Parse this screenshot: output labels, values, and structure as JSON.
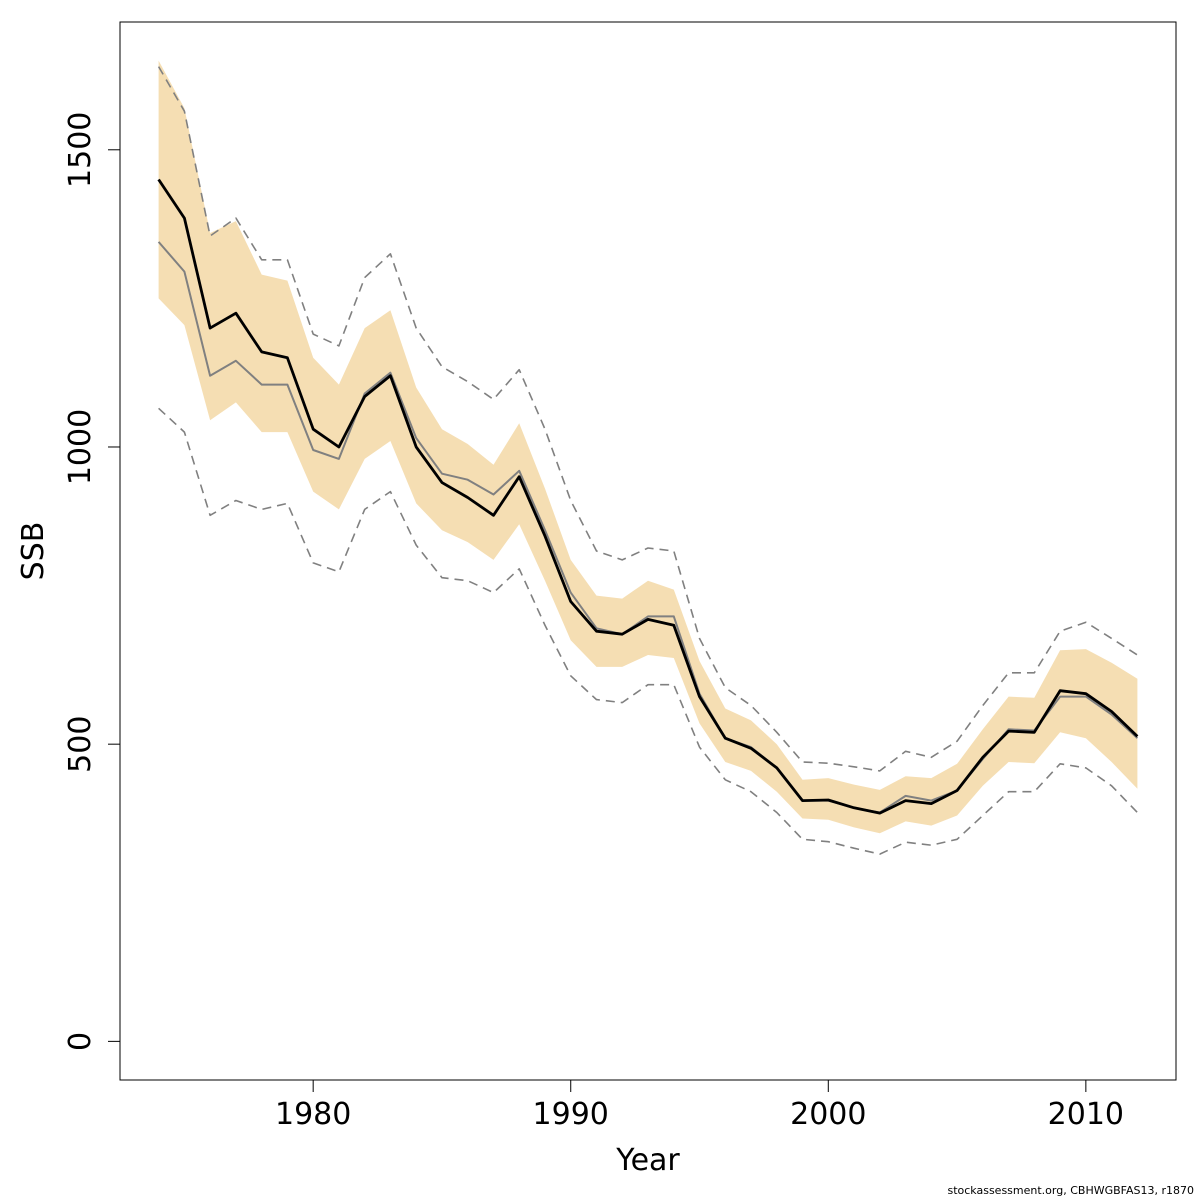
{
  "chart_data": {
    "type": "line",
    "xlabel": "Year",
    "ylabel": "SSB",
    "xlim": [
      1972.5,
      2013.5
    ],
    "ylim": [
      -65,
      1715
    ],
    "x_ticks": [
      1980,
      1990,
      2000,
      2010
    ],
    "y_ticks": [
      0,
      500,
      1000,
      1500
    ],
    "grid": false,
    "legend": "none",
    "colors": {
      "band": "#f5deb3",
      "main_line": "#000000",
      "secondary_line": "#808080",
      "outer_dashed": "#808080"
    },
    "x": [
      1974,
      1975,
      1976,
      1977,
      1978,
      1979,
      1980,
      1981,
      1982,
      1983,
      1984,
      1985,
      1986,
      1987,
      1988,
      1989,
      1990,
      1991,
      1992,
      1993,
      1994,
      1995,
      1996,
      1997,
      1998,
      1999,
      2000,
      2001,
      2002,
      2003,
      2004,
      2005,
      2006,
      2007,
      2008,
      2009,
      2010,
      2011,
      2012
    ],
    "series": [
      {
        "role": "band_upper",
        "values": [
          1650,
          1570,
          1360,
          1380,
          1290,
          1280,
          1150,
          1105,
          1200,
          1230,
          1100,
          1030,
          1005,
          970,
          1040,
          930,
          810,
          750,
          745,
          775,
          760,
          640,
          560,
          540,
          500,
          440,
          443,
          432,
          423,
          446,
          443,
          467,
          525,
          580,
          578,
          658,
          660,
          637,
          610
        ]
      },
      {
        "role": "band_lower",
        "values": [
          1250,
          1205,
          1045,
          1075,
          1025,
          1025,
          925,
          895,
          980,
          1010,
          905,
          860,
          840,
          810,
          870,
          775,
          675,
          630,
          630,
          650,
          645,
          535,
          470,
          455,
          420,
          375,
          373,
          360,
          350,
          370,
          363,
          380,
          430,
          470,
          468,
          520,
          510,
          470,
          425
        ]
      },
      {
        "role": "outer_upper",
        "values": [
          1640,
          1565,
          1355,
          1385,
          1315,
          1315,
          1190,
          1170,
          1285,
          1325,
          1200,
          1135,
          1110,
          1080,
          1130,
          1030,
          910,
          825,
          810,
          830,
          825,
          678,
          595,
          565,
          520,
          470,
          468,
          462,
          455,
          488,
          478,
          505,
          565,
          620,
          620,
          690,
          705,
          678,
          650
        ]
      },
      {
        "role": "outer_lower",
        "values": [
          1065,
          1025,
          885,
          910,
          895,
          905,
          805,
          790,
          895,
          925,
          835,
          780,
          775,
          755,
          795,
          700,
          615,
          575,
          570,
          600,
          600,
          495,
          440,
          420,
          385,
          340,
          336,
          325,
          315,
          335,
          330,
          340,
          380,
          420,
          420,
          467,
          460,
          430,
          385
        ]
      },
      {
        "role": "secondary_line",
        "values": [
          1345,
          1295,
          1120,
          1145,
          1105,
          1105,
          995,
          980,
          1090,
          1125,
          1015,
          955,
          945,
          920,
          960,
          860,
          755,
          695,
          685,
          715,
          715,
          585,
          510,
          495,
          460,
          405,
          405,
          393,
          385,
          413,
          405,
          422,
          475,
          525,
          523,
          580,
          580,
          550,
          510
        ]
      },
      {
        "role": "main_line",
        "values": [
          1450,
          1385,
          1200,
          1225,
          1160,
          1150,
          1030,
          1000,
          1085,
          1120,
          1000,
          940,
          915,
          885,
          950,
          850,
          740,
          690,
          685,
          710,
          700,
          580,
          510,
          493,
          460,
          405,
          406,
          393,
          384,
          405,
          400,
          422,
          478,
          522,
          520,
          590,
          585,
          555,
          513
        ]
      }
    ]
  },
  "footer": {
    "credit": "stockassessment.org, CBHWGBFAS13, r1870"
  }
}
